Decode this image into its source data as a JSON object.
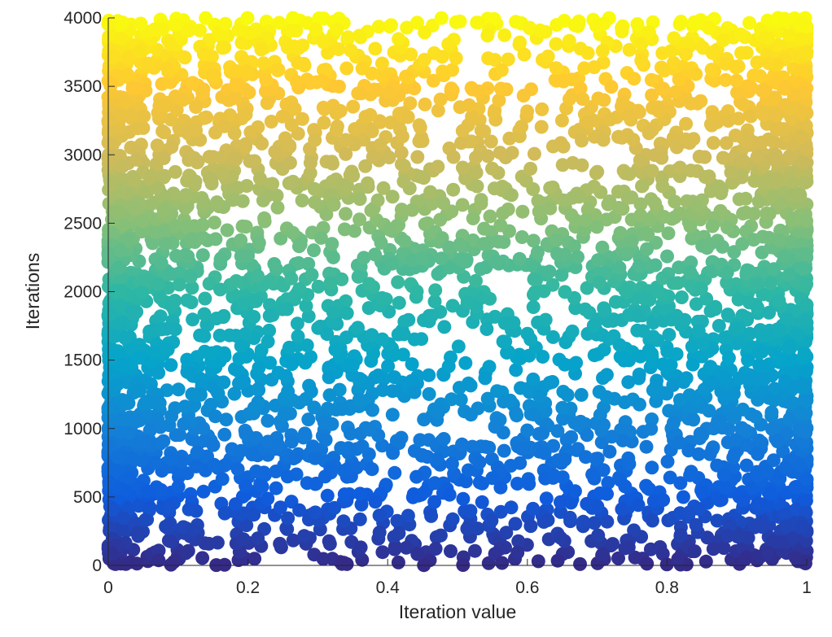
{
  "chart_data": {
    "type": "scatter",
    "xlabel": "Iteration value",
    "ylabel": "Iterations",
    "xlim": [
      0,
      1
    ],
    "ylim": [
      0,
      4000
    ],
    "xticks": [
      "0",
      "0.2",
      "0.4",
      "0.6",
      "0.8",
      "1"
    ],
    "yticks": [
      "0",
      "500",
      "1000",
      "1500",
      "2000",
      "2500",
      "3000",
      "3500",
      "4000"
    ],
    "grid": false,
    "legend": "none",
    "colormap": "parula",
    "color_by": "y",
    "colormap_stops": [
      "#352a87",
      "#0f5cdd",
      "#1481d6",
      "#06a4ca",
      "#2eb7a4",
      "#87bf77",
      "#d1bb59",
      "#fec832",
      "#f9fb0e"
    ],
    "series": [
      {
        "sample_size": 4000,
        "distribution": "arcsine (edge-concentrated, denser near x=0 and x=1)",
        "x_range": [
          0,
          1
        ],
        "y_range": [
          1,
          4000
        ]
      }
    ]
  }
}
